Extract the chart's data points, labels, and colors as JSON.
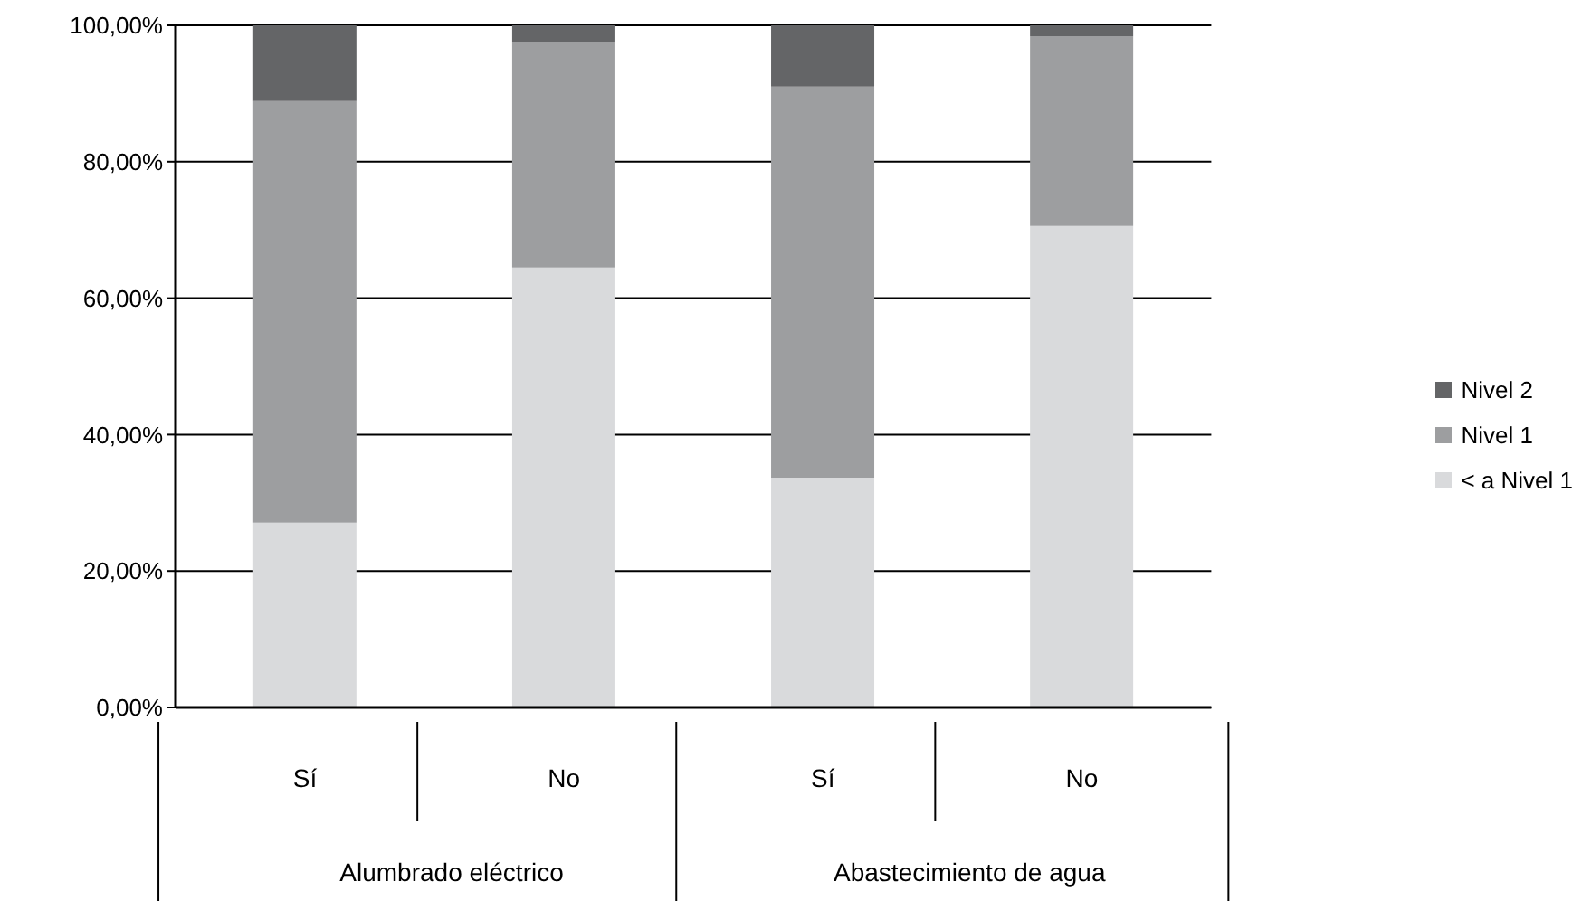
{
  "chart_data": {
    "type": "bar",
    "stacked": true,
    "categories": [
      "Sí",
      "No",
      "Sí",
      "No"
    ],
    "annotations": [
      "Alumbrado eléctrico",
      "Abastecimiento de agua"
    ],
    "series": [
      {
        "name": "< a Nivel 1",
        "color": "#d9dadc",
        "values": [
          27.1,
          64.5,
          33.7,
          70.6
        ]
      },
      {
        "name": "Nivel 1",
        "color": "#9d9ea0",
        "values": [
          61.8,
          33.1,
          57.3,
          27.8
        ]
      },
      {
        "name": "Nivel 2",
        "color": "#646567",
        "values": [
          11.1,
          2.4,
          9.0,
          1.6
        ]
      }
    ],
    "ylim": [
      0,
      100
    ],
    "yticks": [
      {
        "value": 0,
        "label": "0,00%"
      },
      {
        "value": 20,
        "label": "20,00%"
      },
      {
        "value": 40,
        "label": "40,00%"
      },
      {
        "value": 60,
        "label": "60,00%"
      },
      {
        "value": 80,
        "label": "80,00%"
      },
      {
        "value": 100,
        "label": "100,00%"
      }
    ],
    "grid": "y",
    "legend": "right"
  }
}
